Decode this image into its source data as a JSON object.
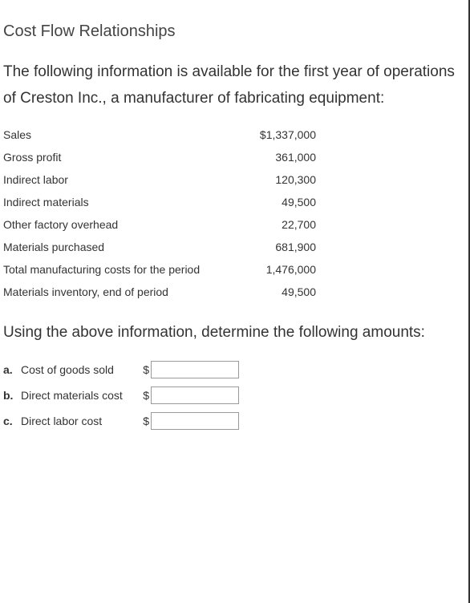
{
  "title": "Cost Flow Relationships",
  "intro": "The following information is available for the first year of operations of Creston Inc., a manufacturer of fabricating equipment:",
  "data_rows": [
    {
      "label": "Sales",
      "value": "$1,337,000"
    },
    {
      "label": "Gross profit",
      "value": "361,000"
    },
    {
      "label": "Indirect labor",
      "value": "120,300"
    },
    {
      "label": "Indirect materials",
      "value": "49,500"
    },
    {
      "label": "Other factory overhead",
      "value": "22,700"
    },
    {
      "label": "Materials purchased",
      "value": "681,900"
    },
    {
      "label": "Total manufacturing costs for the period",
      "value": "1,476,000"
    },
    {
      "label": "Materials inventory, end of period",
      "value": "49,500"
    }
  ],
  "instruction": "Using the above information, determine the following amounts:",
  "answers": [
    {
      "letter": "a.",
      "label": "Cost of goods sold",
      "currency": "$"
    },
    {
      "letter": "b.",
      "label": "Direct materials cost",
      "currency": "$"
    },
    {
      "letter": "c.",
      "label": "Direct labor cost",
      "currency": "$"
    }
  ],
  "colors": {
    "text": "#333333",
    "background": "#ffffff",
    "input_border": "#999999",
    "right_border": "#333333"
  },
  "fonts": {
    "title_size": 20,
    "body_size": 19,
    "table_size": 14
  }
}
